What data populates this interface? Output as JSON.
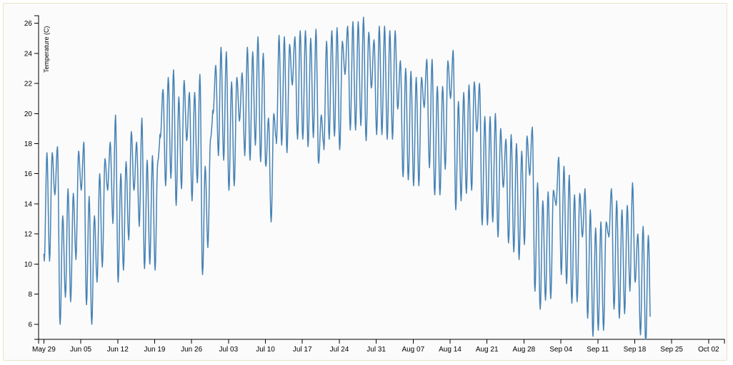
{
  "chart_data": {
    "type": "line",
    "title": "",
    "xlabel": "",
    "ylabel": "Temperature (C)",
    "x_start": "May 29",
    "x_end": "Oct 05",
    "xlim": [
      "May 28",
      "Oct 05"
    ],
    "ylim": [
      5,
      26.5
    ],
    "grid": false,
    "legend": "none",
    "color": "#4682b4",
    "y_ticks": [
      6,
      8,
      10,
      12,
      14,
      16,
      18,
      20,
      22,
      24,
      26
    ],
    "x_tick_labels": [
      "May 29",
      "Jun 05",
      "Jun 12",
      "Jun 19",
      "Jun 26",
      "Jul 03",
      "Jul 10",
      "Jul 17",
      "Jul 24",
      "Jul 31",
      "Aug 07",
      "Aug 14",
      "Aug 21",
      "Aug 28",
      "Sep 04",
      "Sep 11",
      "Sep 18",
      "Sep 25",
      "Oct 02"
    ],
    "daily_max": [
      17.4,
      17.4,
      17.8,
      13.2,
      15.0,
      14.7,
      17.5,
      18.1,
      14.5,
      13.2,
      16.0,
      17.0,
      18.1,
      19.9,
      16.0,
      16.8,
      18.8,
      18.1,
      19.7,
      16.9,
      17.2,
      16.8,
      21.6,
      22.4,
      22.9,
      21.1,
      22.2,
      21.4,
      21.4,
      22.6,
      16.5,
      18.3,
      23.2,
      24.4,
      24.1,
      22.1,
      22.4,
      22.7,
      24.4,
      24.1,
      25.1,
      24.0,
      19.7,
      20.0,
      25.2,
      25.1,
      24.6,
      25.1,
      25.5,
      25.5,
      25.0,
      25.6,
      19.9,
      24.8,
      25.5,
      25.7,
      24.8,
      25.8,
      26.1,
      26.1,
      26.4,
      25.4,
      24.9,
      25.8,
      25.8,
      25.5,
      25.5,
      23.5,
      23.0,
      22.8,
      22.4,
      22.4,
      23.6,
      23.6,
      21.8,
      21.8,
      23.5,
      24.2,
      20.8,
      21.4,
      21.9,
      22.1,
      22.0,
      19.8,
      19.8,
      20.0,
      19.0,
      18.3,
      18.6,
      18.0,
      17.5,
      18.5,
      19.1,
      15.4,
      14.2,
      14.8,
      14.9,
      17.1,
      16.5,
      15.9,
      14.6,
      14.7,
      15.0,
      13.6,
      12.4,
      12.8,
      12.8,
      15.0,
      14.2,
      13.6,
      13.9,
      15.4,
      12.0,
      12.5,
      11.9
    ]
  }
}
